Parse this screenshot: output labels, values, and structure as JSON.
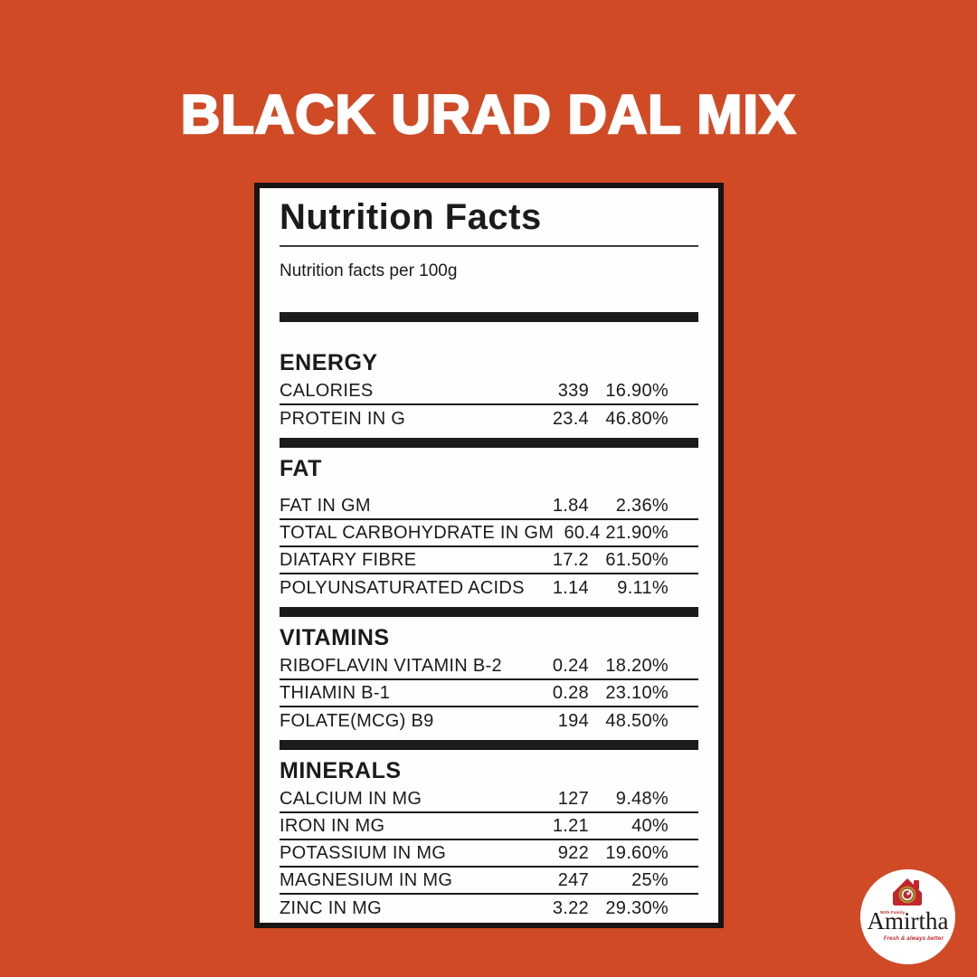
{
  "page": {
    "title": "BLACK URAD DAL MIX"
  },
  "label": {
    "heading": "Nutrition Facts",
    "subheading": "Nutrition facts per 100g",
    "sections": [
      {
        "name": "ENERGY",
        "rows": [
          {
            "label": "CALORIES",
            "value": "339",
            "percent": "16.90%"
          },
          {
            "label": "PROTEIN IN G",
            "value": "23.4",
            "percent": "46.80%"
          }
        ]
      },
      {
        "name": "FAT",
        "rows": [
          {
            "label": "FAT IN GM",
            "value": "1.84",
            "percent": "2.36%"
          },
          {
            "label": "TOTAL CARBOHYDRATE IN GM",
            "value": "60.4",
            "percent": "21.90%"
          },
          {
            "label": "DIATARY FIBRE",
            "value": "17.2",
            "percent": "61.50%"
          },
          {
            "label": "POLYUNSATURATED ACIDS",
            "value": "1.14",
            "percent": "9.11%"
          }
        ]
      },
      {
        "name": "VITAMINS",
        "rows": [
          {
            "label": "RIBOFLAVIN VITAMIN B-2",
            "value": "0.24",
            "percent": "18.20%"
          },
          {
            "label": "THIAMIN B-1",
            "value": "0.28",
            "percent": "23.10%"
          },
          {
            "label": "FOLATE(MCG) B9",
            "value": "194",
            "percent": "48.50%"
          }
        ]
      },
      {
        "name": "MINERALS",
        "rows": [
          {
            "label": "CALCIUM IN MG",
            "value": "127",
            "percent": "9.48%"
          },
          {
            "label": "IRON IN MG",
            "value": "1.21",
            "percent": "40%"
          },
          {
            "label": "POTASSIUM IN MG",
            "value": "922",
            "percent": "19.60%"
          },
          {
            "label": "MAGNESIUM IN MG",
            "value": "247",
            "percent": "25%"
          },
          {
            "label": "ZINC IN MG",
            "value": "3.22",
            "percent": "29.30%"
          }
        ]
      }
    ]
  },
  "logo": {
    "brand": "Amirtha",
    "top_text": "With Family",
    "tagline": "Fresh & always better"
  },
  "colors": {
    "background": "#D04A26",
    "card_background": "#FEFEFD",
    "ink": "#1B1B1B",
    "title_text": "#FFFFFF",
    "logo_red": "#C4242B",
    "logo_gold": "#B68A2E"
  }
}
